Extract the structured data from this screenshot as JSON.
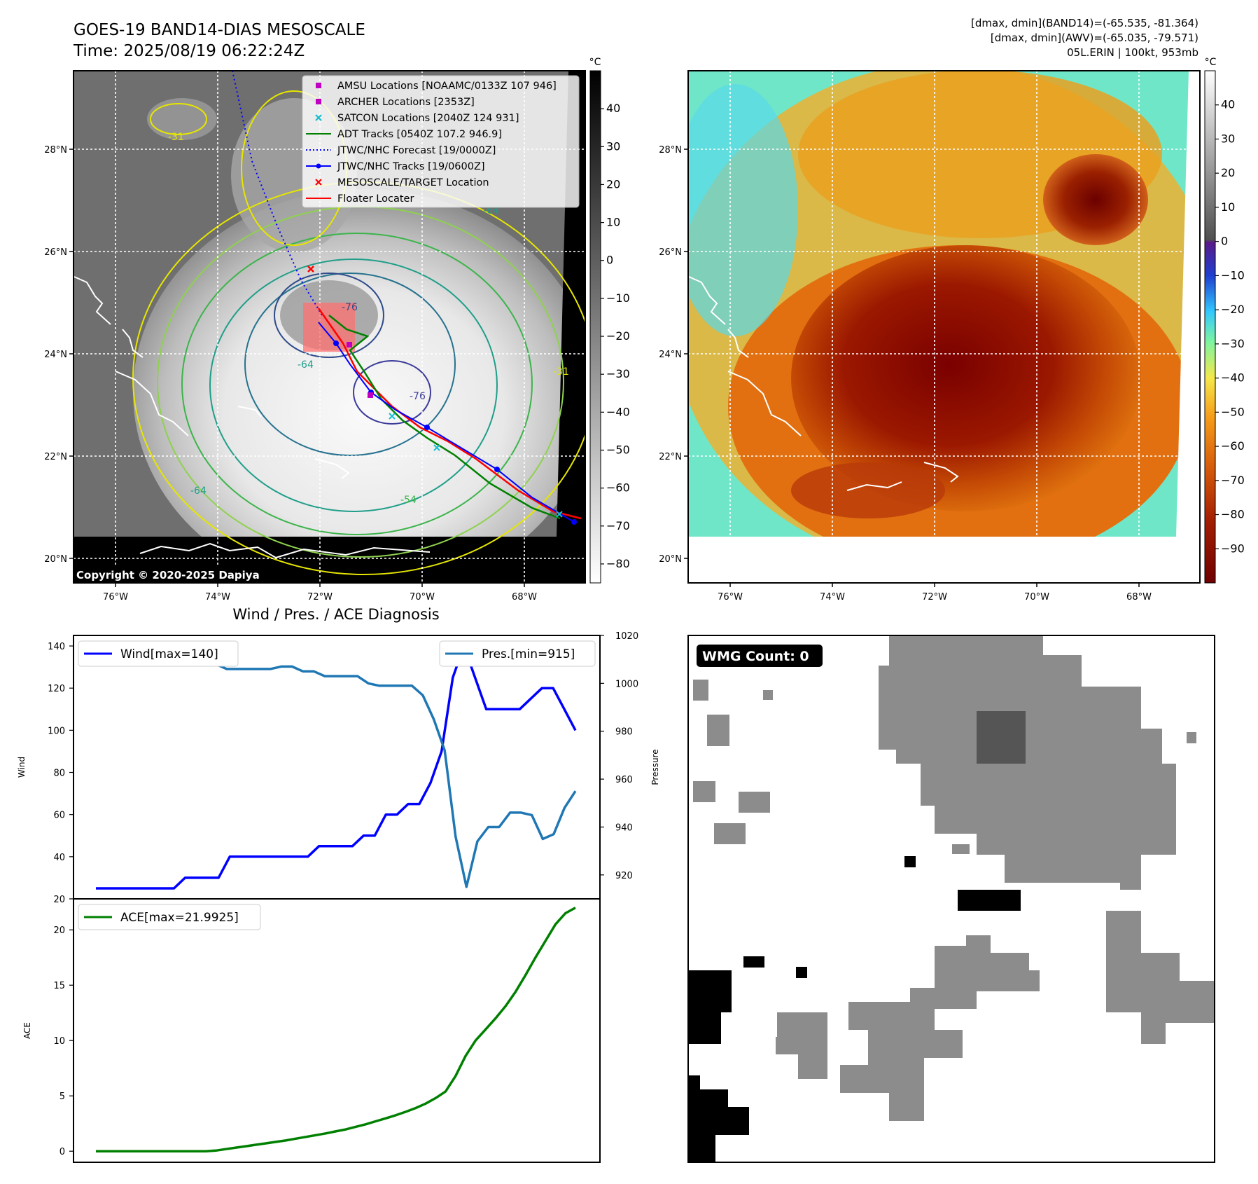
{
  "header": {
    "title_line1": "GOES-19 BAND14-DIAS MESOSCALE",
    "title_line2": "Time: 2025/08/19 06:22:24Z",
    "info_line1": "[dmax, dmin](BAND14)=(-65.535, -81.364)",
    "info_line2": "[dmax, dmin](AWV)=(-65.035, -79.571)",
    "info_line3": "05L.ERIN | 100kt, 953mb"
  },
  "map_axes": {
    "lon_ticks": [
      "76°W",
      "74°W",
      "72°W",
      "70°W",
      "68°W"
    ],
    "lat_ticks": [
      "28°N",
      "26°N",
      "24°N",
      "22°N",
      "20°N"
    ]
  },
  "ir_panel": {
    "copyright": "Copyright © 2020-2025 Dapiya",
    "contour_labels": [
      "-31",
      "-64",
      "-76",
      "-64",
      "-76",
      "-54",
      "-64",
      "-31"
    ],
    "legend": [
      {
        "label": "AMSU Locations [NOAAMC/0133Z 107 946]",
        "marker": "square",
        "color": "#c000c0"
      },
      {
        "label": "ARCHER Locations [2353Z]",
        "marker": "square",
        "color": "#c000c0"
      },
      {
        "label": "SATCON Locations [2040Z 124 931]",
        "marker": "x",
        "color": "#17becf"
      },
      {
        "label": "ADT Tracks [0540Z 107.2 946.9]",
        "marker": "line",
        "color": "#008000"
      },
      {
        "label": "JTWC/NHC Forecast [19/0000Z]",
        "marker": "dotted",
        "color": "#0000ff"
      },
      {
        "label": "JTWC/NHC Tracks [19/0600Z]",
        "marker": "line-dot",
        "color": "#0000ff"
      },
      {
        "label": "MESOSCALE/TARGET Location",
        "marker": "x",
        "color": "#ff0000"
      },
      {
        "label": "Floater Locater",
        "marker": "line",
        "color": "#ff0000"
      }
    ],
    "colorbar": {
      "unit": "°C",
      "ticks": [
        "40",
        "30",
        "20",
        "10",
        "0",
        "−10",
        "−20",
        "−30",
        "−40",
        "−50",
        "−60",
        "−70",
        "−80"
      ]
    }
  },
  "wv_panel": {
    "colorbar": {
      "unit": "°C",
      "ticks": [
        "40",
        "30",
        "20",
        "10",
        "0",
        "−10",
        "−20",
        "−30",
        "−40",
        "−50",
        "−60",
        "−70",
        "−80",
        "−90"
      ]
    }
  },
  "wmg_panel": {
    "badge": "WMG Count: 0"
  },
  "chart_data": [
    {
      "type": "line",
      "title": "Wind / Pres. / ACE Diagnosis",
      "ylabel": "Wind",
      "ylim": [
        20,
        145
      ],
      "yticks": [
        20,
        40,
        60,
        80,
        100,
        120,
        140
      ],
      "series": [
        {
          "name": "Wind[max=140]",
          "color": "#0000ff",
          "values": [
            25,
            25,
            25,
            25,
            25,
            25,
            25,
            25,
            30,
            30,
            30,
            30,
            40,
            40,
            40,
            40,
            40,
            40,
            40,
            40,
            45,
            45,
            45,
            45,
            50,
            50,
            60,
            60,
            65,
            65,
            75,
            90,
            125,
            140,
            125,
            110,
            110,
            110,
            110,
            115,
            120,
            120,
            110,
            100
          ]
        }
      ]
    },
    {
      "type": "line",
      "ylabel": "Pressure",
      "ylim": [
        910,
        1020
      ],
      "yticks": [
        920,
        940,
        960,
        980,
        1000,
        1020
      ],
      "series": [
        {
          "name": "Pres.[min=915]",
          "color": "#1f77b4",
          "values": [
            1015,
            1015,
            1010,
            1009,
            1008,
            1008,
            1008,
            1008,
            1008,
            1008,
            1008,
            1008,
            1006,
            1006,
            1006,
            1006,
            1006,
            1007,
            1007,
            1005,
            1005,
            1003,
            1003,
            1003,
            1003,
            1000,
            999,
            999,
            999,
            999,
            995,
            985,
            972,
            936,
            915,
            934,
            940,
            940,
            946,
            946,
            945,
            935,
            937,
            948,
            955
          ]
        }
      ]
    },
    {
      "type": "line",
      "ylabel": "ACE",
      "ylim": [
        -1.0,
        22.8
      ],
      "yticks": [
        0,
        5,
        10,
        15,
        20
      ],
      "series": [
        {
          "name": "ACE[max=21.9925]",
          "color": "#008000",
          "values": [
            0,
            0,
            0,
            0,
            0,
            0,
            0,
            0,
            0,
            0,
            0,
            0,
            0.06,
            0.19,
            0.32,
            0.45,
            0.58,
            0.71,
            0.84,
            0.97,
            1.13,
            1.29,
            1.45,
            1.61,
            1.79,
            1.97,
            2.2,
            2.43,
            2.7,
            2.97,
            3.25,
            3.56,
            3.9,
            4.3,
            4.8,
            5.4,
            6.8,
            8.6,
            10.0,
            11.0,
            12.0,
            13.1,
            14.4,
            15.9,
            17.5,
            19.0,
            20.5,
            21.5,
            22.0
          ]
        }
      ]
    }
  ]
}
